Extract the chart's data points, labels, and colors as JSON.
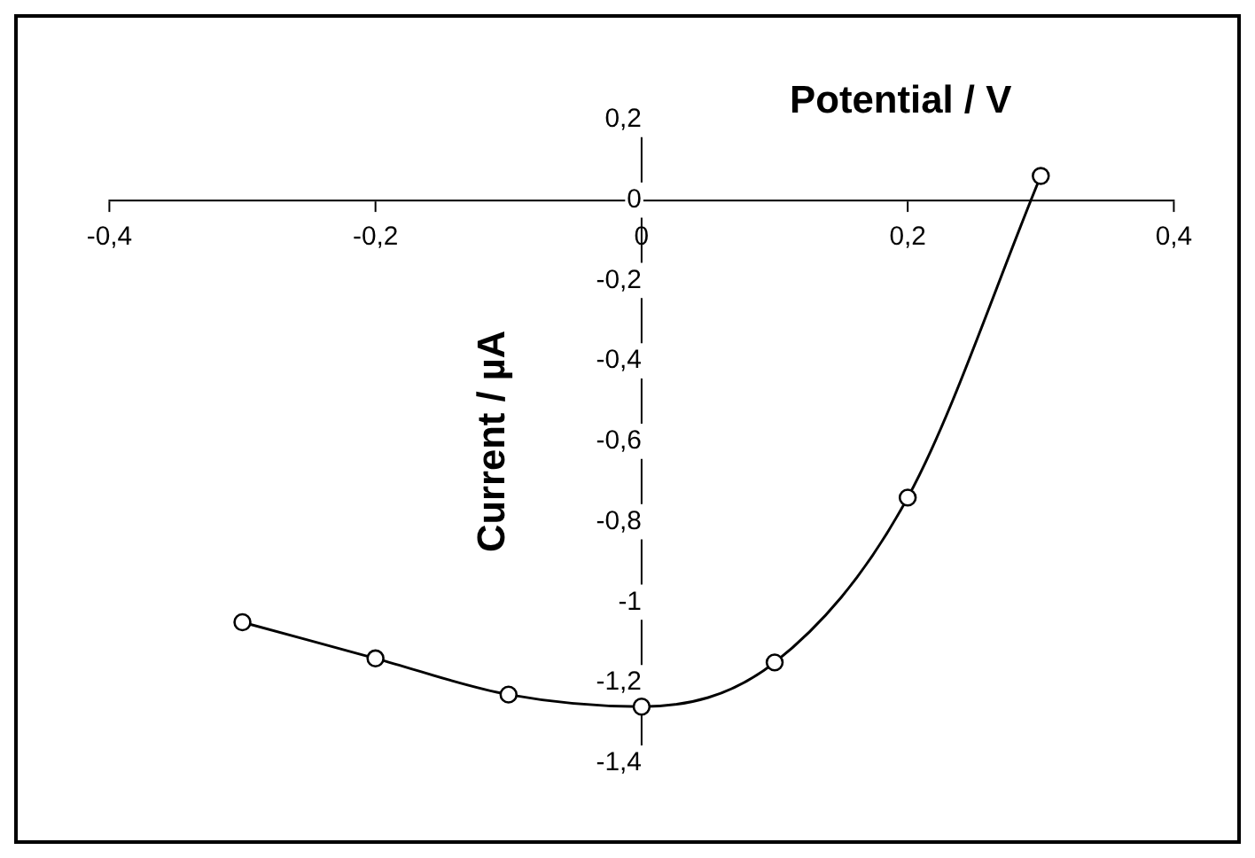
{
  "chart_data": {
    "type": "line",
    "xlabel": "Potential / V",
    "ylabel": "Current / µA",
    "x": [
      -0.3,
      -0.2,
      -0.1,
      0,
      0.1,
      0.2,
      0.3
    ],
    "series": [
      {
        "color": "#000000",
        "values": [
          -1.05,
          -1.14,
          -1.23,
          -1.26,
          -1.15,
          -0.74,
          0.06
        ]
      }
    ],
    "xlim": [
      -0.4,
      0.4
    ],
    "ylim": [
      -1.4,
      0.2
    ],
    "xticks": [
      {
        "value": -0.4,
        "label": "-0,4"
      },
      {
        "value": -0.2,
        "label": "-0,2"
      },
      {
        "value": 0,
        "label": "0"
      },
      {
        "value": 0.2,
        "label": "0,2"
      },
      {
        "value": 0.4,
        "label": "0,4"
      }
    ],
    "yticks": [
      {
        "value": -1.4,
        "label": "-1,4"
      },
      {
        "value": -1.2,
        "label": "-1,2"
      },
      {
        "value": -1,
        "label": "-1"
      },
      {
        "value": -0.8,
        "label": "-0,8"
      },
      {
        "value": -0.6,
        "label": "-0,6"
      },
      {
        "value": -0.4,
        "label": "-0,4"
      },
      {
        "value": -0.2,
        "label": "-0,2"
      },
      {
        "value": 0,
        "label": "0"
      },
      {
        "value": 0.2,
        "label": "0,2"
      }
    ],
    "grid": false,
    "legend": false,
    "marker": "circle",
    "line_style": "solid"
  }
}
